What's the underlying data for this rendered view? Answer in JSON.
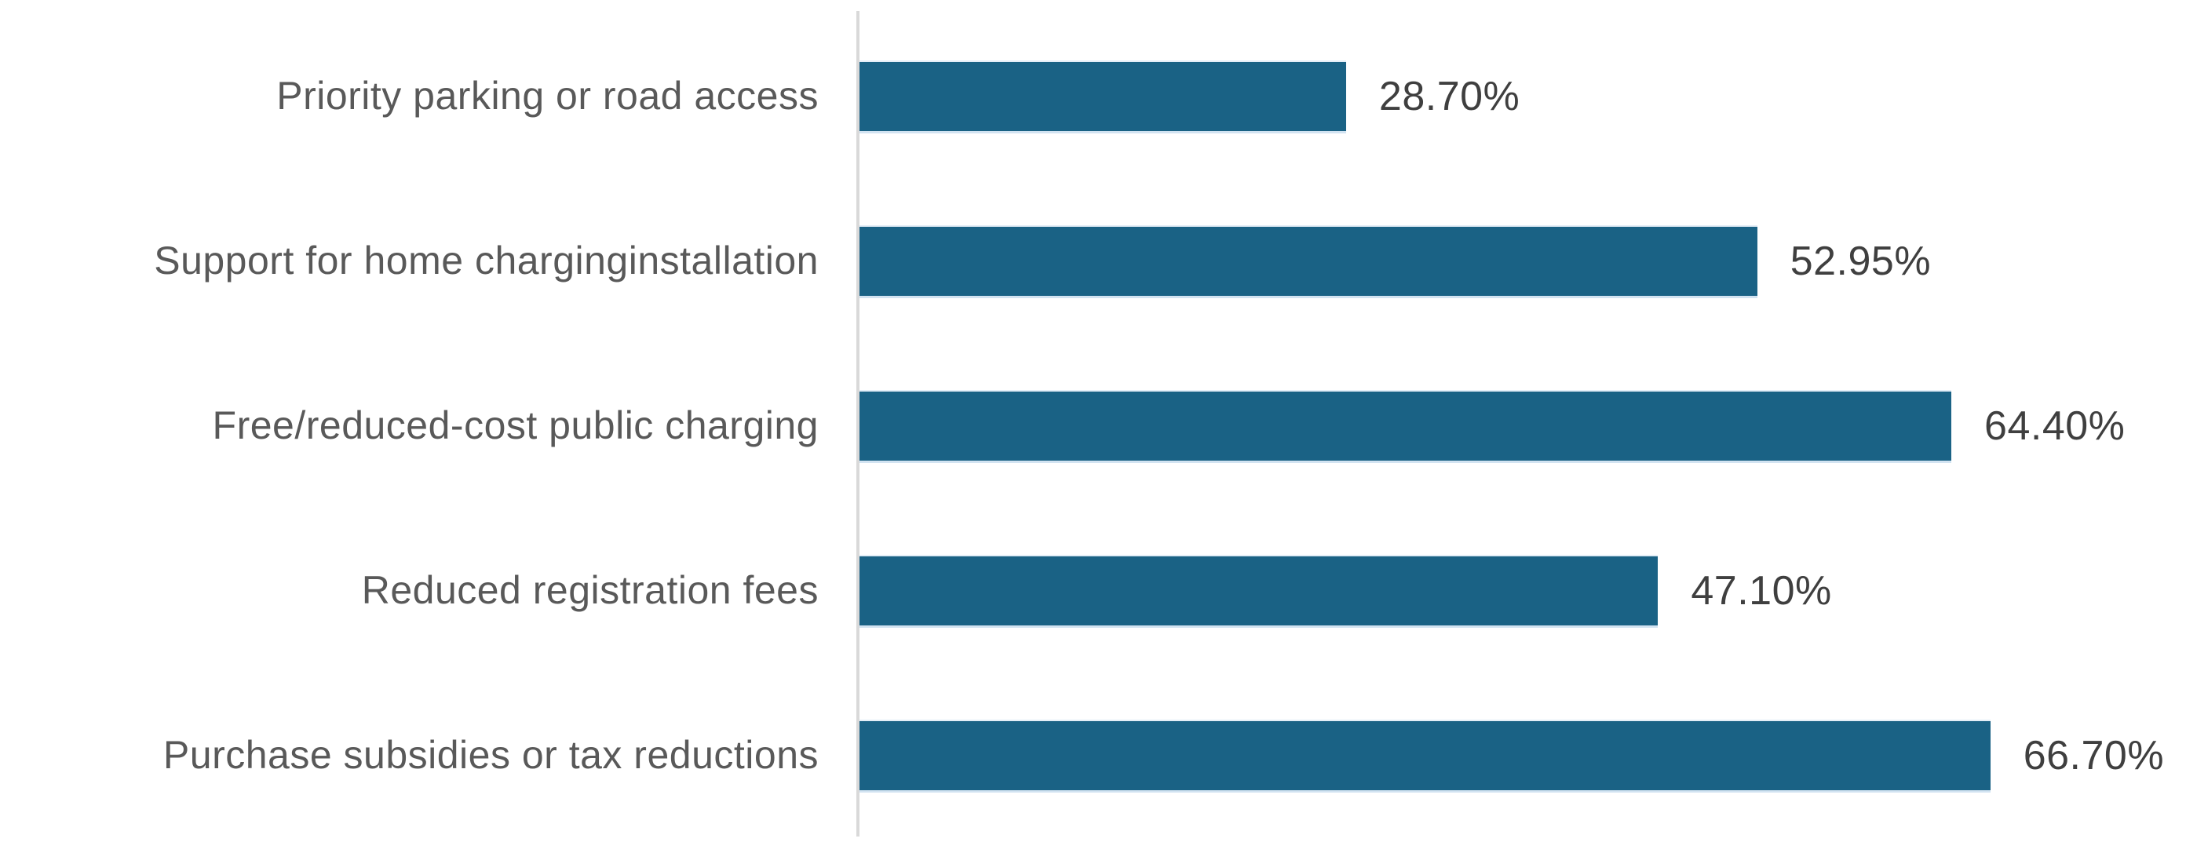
{
  "chart_data": {
    "type": "bar",
    "orientation": "horizontal",
    "title": "",
    "xlabel": "",
    "ylabel": "",
    "categories": [
      "Priority parking or road access",
      "Support for home charginginstallation",
      "Free/reduced-cost public charging",
      "Reduced registration fees",
      "Purchase subsidies or tax reductions"
    ],
    "values": [
      28.7,
      52.95,
      64.4,
      47.1,
      66.7
    ],
    "value_labels": [
      "28.70%",
      "52.95%",
      "64.40%",
      "47.10%",
      "66.70%"
    ],
    "xlim": [
      0,
      70
    ],
    "grid": false,
    "legend": false,
    "colors": {
      "bar_fill": "#1A6285",
      "axis_line": "#D9D9D9",
      "category_text": "#595959",
      "value_text": "#3F3F3F",
      "background": "#FFFFFF"
    }
  }
}
